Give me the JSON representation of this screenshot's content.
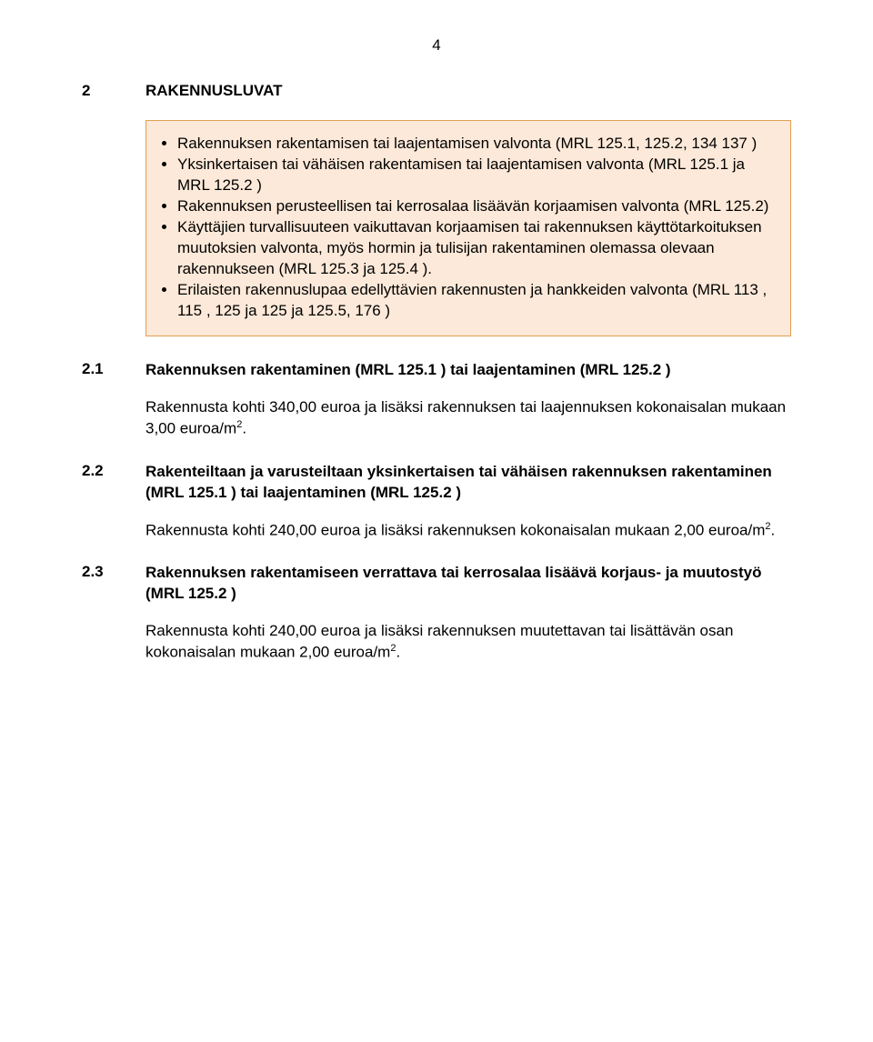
{
  "page_number": "4",
  "section_num": "2",
  "section_title": "RAKENNUSLUVAT",
  "box": {
    "bullets": [
      "Rakennuksen rakentamisen tai laajentamisen valvonta (MRL 125.1, 125.2, 134 137 )",
      "Yksinkertaisen tai vähäisen rakentamisen tai laajentamisen valvonta (MRL 125.1 ja MRL 125.2 )",
      "Rakennuksen perusteellisen tai kerrosalaa lisäävän korjaamisen valvonta (MRL 125.2)",
      "Käyttäjien turvallisuuteen vaikuttavan korjaamisen tai rakennuksen käyttötarkoituksen muutoksien valvonta, myös hormin ja tulisijan rakentaminen olemassa olevaan rakennukseen (MRL 125.3 ja 125.4 ).",
      "Erilaisten rakennuslupaa edellyttävien rakennusten ja hankkeiden valvonta (MRL 113 , 115 , 125 ja 125 ja 125.5, 176 )"
    ]
  },
  "subsections": [
    {
      "num": "2.1",
      "title": "Rakennuksen rakentaminen (MRL 125.1 ) tai laajentaminen (MRL 125.2 )",
      "body_pre": "Rakennusta kohti 340,00 euroa ja lisäksi rakennuksen tai laajennuksen kokonaisalan mukaan 3,00 euroa/m",
      "body_post": "."
    },
    {
      "num": "2.2",
      "title": "Rakenteiltaan ja varusteiltaan yksinkertaisen tai vähäisen rakennuksen rakentaminen (MRL 125.1 ) tai laajentaminen (MRL 125.2 )",
      "body_pre": "Rakennusta kohti 240,00 euroa ja lisäksi rakennuksen kokonaisalan mukaan 2,00 euroa/m",
      "body_post": "."
    },
    {
      "num": "2.3",
      "title": "Rakennuksen rakentamiseen verrattava tai kerrosalaa lisäävä korjaus- ja muutostyö (MRL 125.2 )",
      "body_pre": "Rakennusta kohti 240,00 euroa ja lisäksi rakennuksen muutettavan tai lisättävän osan kokonaisalan mukaan 2,00 euroa/m",
      "body_post": "."
    }
  ],
  "colors": {
    "box_bg": "#fde9d9",
    "box_border": "#e0a050",
    "text": "#000000",
    "bg": "#ffffff"
  },
  "typography": {
    "body_fontsize": 17,
    "font_family": "Verdana"
  }
}
